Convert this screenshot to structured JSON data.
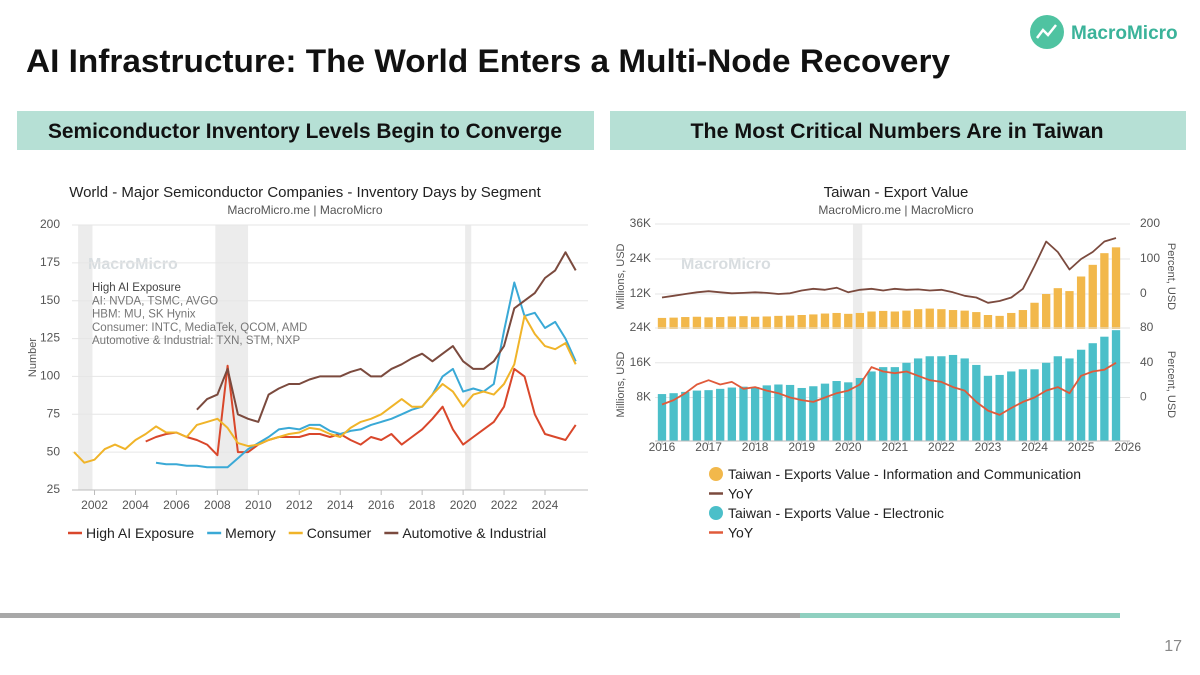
{
  "header": {
    "title": "AI Infrastructure: The World Enters a Multi-Node Recovery",
    "logo": "MacroMicro"
  },
  "sections": [
    {
      "heading": "Semiconductor Inventory Levels Begin to Converge"
    },
    {
      "heading": "The Most Critical Numbers Are in Taiwan"
    }
  ],
  "page_number": 17,
  "chart_data": [
    {
      "type": "line",
      "title": "World - Major Semiconductor Companies - Inventory Days by Segment",
      "subtitle": "MacroMicro.me | MacroMicro",
      "watermark": "MacroMicro",
      "ylabel": "Number",
      "annotation": [
        "High AI Exposure",
        "AI: NVDA, TSMC, AVGO",
        "HBM: MU, SK Hynix",
        "Consumer: INTC, MediaTek, QCOM, AMD",
        "Automotive & Industrial: TXN, STM, NXP"
      ],
      "xlim": [
        2000.9,
        2026.1
      ],
      "xticks": [
        2002,
        2004,
        2006,
        2008,
        2010,
        2012,
        2014,
        2016,
        2018,
        2020,
        2022,
        2024
      ],
      "ylim": [
        25,
        200
      ],
      "yticks": [
        25,
        50,
        75,
        100,
        125,
        150,
        175,
        200
      ],
      "grid": true,
      "shaded_ranges": [
        [
          2001.2,
          2001.9
        ],
        [
          2007.9,
          2009.5
        ],
        [
          2020.1,
          2020.4
        ]
      ],
      "x": [
        2001,
        2001.5,
        2002,
        2002.5,
        2003,
        2003.5,
        2004,
        2004.5,
        2005,
        2005.5,
        2006,
        2006.5,
        2007,
        2007.5,
        2008,
        2008.5,
        2009,
        2009.5,
        2010,
        2010.5,
        2011,
        2011.5,
        2012,
        2012.5,
        2013,
        2013.5,
        2014,
        2014.5,
        2015,
        2015.5,
        2016,
        2016.5,
        2017,
        2017.5,
        2018,
        2018.5,
        2019,
        2019.5,
        2020,
        2020.5,
        2021,
        2021.5,
        2022,
        2022.5,
        2023,
        2023.5,
        2024,
        2024.5,
        2025,
        2025.5
      ],
      "series": [
        {
          "name": "High AI Exposure",
          "color": "#d9472b",
          "values": [
            null,
            null,
            null,
            null,
            null,
            null,
            null,
            57,
            60,
            62,
            63,
            60,
            58,
            55,
            48,
            107,
            50,
            50,
            55,
            58,
            60,
            60,
            60,
            62,
            62,
            60,
            62,
            58,
            55,
            60,
            58,
            62,
            55,
            60,
            65,
            72,
            80,
            65,
            55,
            60,
            65,
            70,
            80,
            105,
            100,
            75,
            62,
            60,
            58,
            68
          ]
        },
        {
          "name": "Memory",
          "color": "#3aa9d6",
          "values": [
            null,
            null,
            null,
            null,
            null,
            null,
            null,
            null,
            43,
            42,
            42,
            41,
            41,
            40,
            40,
            40,
            46,
            52,
            56,
            60,
            65,
            66,
            65,
            68,
            68,
            64,
            62,
            64,
            65,
            68,
            70,
            72,
            75,
            78,
            80,
            88,
            100,
            105,
            90,
            92,
            90,
            95,
            130,
            162,
            140,
            142,
            132,
            136,
            125,
            110
          ]
        },
        {
          "name": "Consumer",
          "color": "#f0b429",
          "values": [
            50,
            43,
            45,
            52,
            55,
            52,
            58,
            62,
            67,
            63,
            63,
            60,
            68,
            70,
            72,
            66,
            56,
            54,
            55,
            58,
            60,
            62,
            63,
            66,
            65,
            62,
            60,
            66,
            70,
            72,
            75,
            80,
            85,
            80,
            80,
            88,
            95,
            90,
            80,
            88,
            90,
            88,
            95,
            108,
            140,
            128,
            120,
            118,
            122,
            108
          ]
        },
        {
          "name": "Automotive & Industrial",
          "color": "#7b4a3e",
          "values": [
            null,
            null,
            null,
            null,
            null,
            null,
            null,
            null,
            null,
            null,
            null,
            null,
            78,
            85,
            88,
            105,
            75,
            72,
            70,
            88,
            92,
            95,
            95,
            98,
            100,
            100,
            100,
            103,
            105,
            100,
            100,
            105,
            108,
            112,
            115,
            110,
            115,
            120,
            110,
            105,
            105,
            110,
            120,
            145,
            150,
            155,
            165,
            170,
            182,
            170
          ]
        }
      ]
    },
    {
      "type": "combo",
      "title": "Taiwan - Export Value",
      "subtitle": "MacroMicro.me | MacroMicro",
      "watermark": "MacroMicro",
      "xlim": [
        2015.85,
        2026.05
      ],
      "xticks": [
        2016,
        2017,
        2018,
        2019,
        2020,
        2021,
        2022,
        2023,
        2024,
        2025,
        2026
      ],
      "grid": true,
      "shaded_ranges": [
        [
          2020.1,
          2020.3
        ]
      ],
      "x": [
        2016,
        2016.25,
        2016.5,
        2016.75,
        2017,
        2017.25,
        2017.5,
        2017.75,
        2018,
        2018.25,
        2018.5,
        2018.75,
        2019,
        2019.25,
        2019.5,
        2019.75,
        2020,
        2020.25,
        2020.5,
        2020.75,
        2021,
        2021.25,
        2021.5,
        2021.75,
        2022,
        2022.25,
        2022.5,
        2022.75,
        2023,
        2023.25,
        2023.5,
        2023.75,
        2024,
        2024.25,
        2024.5,
        2024.75,
        2025,
        2025.25,
        2025.5,
        2025.75
      ],
      "panels": [
        {
          "ylabel": "Millions, USD",
          "y2label": "Percent, USD",
          "ylim": [
            0,
            36000
          ],
          "yticks": [
            {
              "value": 12000,
              "label": "12K"
            },
            {
              "value": 24000,
              "label": "24K"
            },
            {
              "value": 36000,
              "label": "36K"
            }
          ],
          "y2lim": [
            -100,
            200
          ],
          "y2ticks": [
            0,
            100,
            200
          ],
          "series": [
            {
              "name": "Taiwan - Exports Value - Information and Communication",
              "kind": "bar",
              "color": "#f2b84b",
              "values": [
                3800,
                3900,
                4100,
                4200,
                4000,
                4100,
                4300,
                4400,
                4200,
                4300,
                4500,
                4600,
                4800,
                5000,
                5300,
                5500,
                5200,
                5500,
                6000,
                6200,
                6000,
                6300,
                6800,
                7000,
                6800,
                6500,
                6300,
                5800,
                4800,
                4500,
                5500,
                6500,
                9000,
                12000,
                14000,
                13000,
                18000,
                22000,
                26000,
                28000
              ]
            },
            {
              "name": "YoY",
              "kind": "line",
              "axis": "y2",
              "color": "#7b4a3e",
              "values": [
                -10,
                -5,
                0,
                5,
                8,
                5,
                2,
                3,
                5,
                3,
                0,
                2,
                10,
                15,
                12,
                18,
                5,
                12,
                15,
                10,
                15,
                12,
                13,
                10,
                12,
                5,
                -5,
                -10,
                -25,
                -20,
                -10,
                15,
                80,
                150,
                120,
                70,
                100,
                120,
                150,
                160
              ]
            }
          ]
        },
        {
          "ylabel": "Millions, USD",
          "y2label": "Percent, USD",
          "ylim": [
            -2000,
            24000
          ],
          "yticks": [
            {
              "value": 8000,
              "label": "8K"
            },
            {
              "value": 16000,
              "label": "16K"
            },
            {
              "value": 24000,
              "label": "24K"
            }
          ],
          "y2lim": [
            -50,
            80
          ],
          "y2ticks": [
            0,
            40,
            80
          ],
          "series": [
            {
              "name": "Taiwan - Exports Value - Electronic",
              "kind": "bar",
              "color": "#4bbfc9",
              "values": [
                8800,
                9000,
                9300,
                9600,
                9700,
                10000,
                10300,
                10500,
                10400,
                10800,
                11000,
                10900,
                10200,
                10600,
                11200,
                11800,
                11500,
                12500,
                14000,
                15000,
                15000,
                16000,
                17000,
                17500,
                17500,
                17800,
                17000,
                15500,
                13000,
                13200,
                14000,
                14500,
                14500,
                16000,
                17500,
                17000,
                19000,
                20500,
                22000,
                23500
              ]
            },
            {
              "name": "YoY",
              "kind": "line",
              "axis": "y2",
              "color": "#e05a3a",
              "values": [
                -8,
                -3,
                5,
                15,
                20,
                15,
                18,
                10,
                12,
                8,
                5,
                0,
                -3,
                -5,
                0,
                5,
                8,
                15,
                35,
                30,
                28,
                30,
                25,
                20,
                18,
                12,
                8,
                -5,
                -15,
                -20,
                -12,
                -5,
                0,
                8,
                12,
                5,
                25,
                30,
                32,
                40
              ]
            }
          ]
        }
      ]
    }
  ]
}
